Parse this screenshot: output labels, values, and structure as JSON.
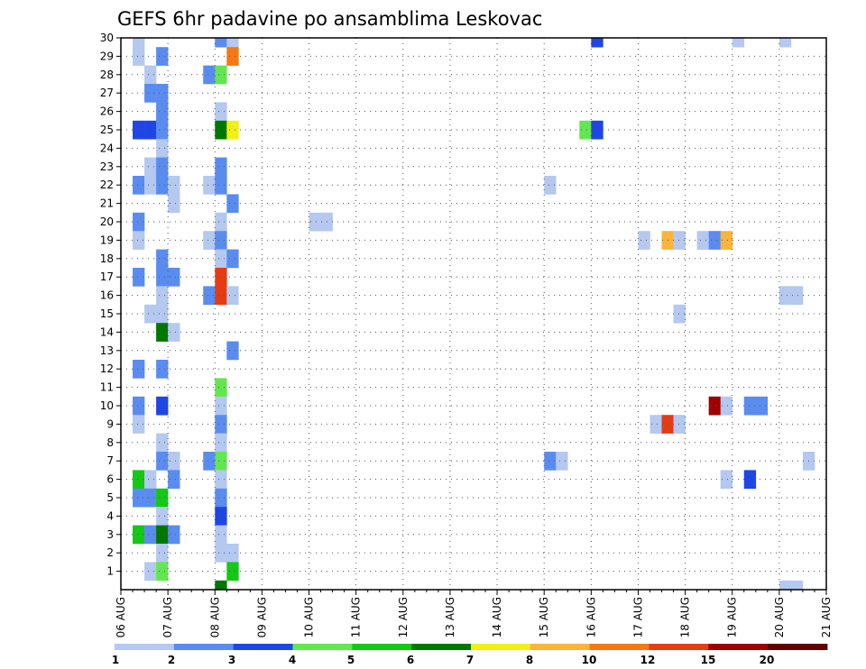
{
  "chart_data": {
    "type": "heatmap",
    "title": "GEFS 6hr padavine po ansamblima Leskovac",
    "xlabel": "",
    "ylabel": "",
    "x_tick_labels": [
      "06 AUG",
      "07 AUG",
      "08 AUG",
      "09 AUG",
      "10 AUG",
      "11 AUG",
      "12 AUG",
      "13 AUG",
      "14 AUG",
      "15 AUG",
      "16 AUG",
      "17 AUG",
      "18 AUG",
      "19 AUG",
      "20 AUG",
      "21 AUG"
    ],
    "x_range_days": [
      0,
      15
    ],
    "y_tick_labels": [
      "1",
      "2",
      "3",
      "4",
      "5",
      "6",
      "7",
      "8",
      "9",
      "10",
      "11",
      "12",
      "13",
      "14",
      "15",
      "16",
      "17",
      "18",
      "19",
      "20",
      "21",
      "22",
      "23",
      "24",
      "25",
      "26",
      "27",
      "28",
      "29",
      "30"
    ],
    "y_range": [
      0,
      30
    ],
    "grid": true,
    "legend_placement": "bottom",
    "legend": {
      "thresholds": [
        "1",
        "2",
        "3",
        "4",
        "5",
        "6",
        "7",
        "8",
        "10",
        "12",
        "15",
        "20"
      ],
      "colors": [
        "#b4c8f0",
        "#5a8cf0",
        "#1e46e6",
        "#64e650",
        "#14c814",
        "#007800",
        "#f0f014",
        "#fab43c",
        "#f57814",
        "#e63c14",
        "#a00000",
        "#640000"
      ]
    },
    "cells_note_units": "cells: [x_day_offset_in_6h_steps, member(y), color_index]",
    "cells": [
      [
        1,
        30,
        0
      ],
      [
        1,
        29,
        0
      ],
      [
        1,
        22,
        1
      ],
      [
        1,
        20,
        1
      ],
      [
        1,
        19,
        0
      ],
      [
        1,
        17,
        1
      ],
      [
        1,
        12,
        1
      ],
      [
        1,
        10,
        1
      ],
      [
        1,
        9,
        0
      ],
      [
        1,
        6,
        4
      ],
      [
        1,
        5,
        1
      ],
      [
        1,
        3,
        4
      ],
      [
        1,
        25,
        2
      ],
      [
        2,
        28,
        0
      ],
      [
        2,
        27,
        1
      ],
      [
        2,
        25,
        2
      ],
      [
        2,
        23,
        0
      ],
      [
        2,
        22,
        0
      ],
      [
        2,
        15,
        0
      ],
      [
        2,
        6,
        0
      ],
      [
        2,
        5,
        1
      ],
      [
        2,
        3,
        1
      ],
      [
        2,
        1,
        0
      ],
      [
        3,
        29,
        1
      ],
      [
        3,
        27,
        1
      ],
      [
        3,
        26,
        1
      ],
      [
        3,
        25,
        1
      ],
      [
        3,
        24,
        0
      ],
      [
        3,
        23,
        1
      ],
      [
        3,
        22,
        1
      ],
      [
        3,
        18,
        1
      ],
      [
        3,
        17,
        1
      ],
      [
        3,
        16,
        0
      ],
      [
        3,
        15,
        0
      ],
      [
        3,
        14,
        5
      ],
      [
        3,
        12,
        1
      ],
      [
        3,
        10,
        2
      ],
      [
        3,
        8,
        0
      ],
      [
        3,
        7,
        1
      ],
      [
        3,
        5,
        4
      ],
      [
        3,
        4,
        0
      ],
      [
        3,
        3,
        5
      ],
      [
        3,
        2,
        0
      ],
      [
        3,
        1,
        3
      ],
      [
        4,
        22,
        0
      ],
      [
        4,
        21,
        0
      ],
      [
        4,
        17,
        1
      ],
      [
        4,
        14,
        0
      ],
      [
        4,
        7,
        0
      ],
      [
        4,
        6,
        1
      ],
      [
        4,
        3,
        1
      ],
      [
        7,
        28,
        1
      ],
      [
        7,
        22,
        0
      ],
      [
        7,
        19,
        0
      ],
      [
        7,
        16,
        1
      ],
      [
        7,
        7,
        1
      ],
      [
        8,
        30,
        1
      ],
      [
        8,
        28,
        3
      ],
      [
        8,
        26,
        0
      ],
      [
        8,
        25,
        5
      ],
      [
        8,
        23,
        1
      ],
      [
        8,
        22,
        1
      ],
      [
        8,
        20,
        0
      ],
      [
        8,
        19,
        1
      ],
      [
        8,
        18,
        0
      ],
      [
        8,
        17,
        9
      ],
      [
        8,
        16,
        9
      ],
      [
        8,
        11,
        3
      ],
      [
        8,
        10,
        0
      ],
      [
        8,
        9,
        1
      ],
      [
        8,
        8,
        0
      ],
      [
        8,
        7,
        3
      ],
      [
        8,
        6,
        0
      ],
      [
        8,
        5,
        1
      ],
      [
        8,
        4,
        2
      ],
      [
        8,
        3,
        0
      ],
      [
        8,
        2,
        0
      ],
      [
        8,
        0,
        5
      ],
      [
        9,
        30,
        0
      ],
      [
        9,
        29,
        8
      ],
      [
        9,
        25,
        6
      ],
      [
        9,
        21,
        1
      ],
      [
        9,
        18,
        1
      ],
      [
        9,
        16,
        0
      ],
      [
        9,
        13,
        1
      ],
      [
        9,
        2,
        0
      ],
      [
        9,
        1,
        4
      ],
      [
        16,
        20,
        0
      ],
      [
        17,
        20,
        0
      ],
      [
        36,
        22,
        0
      ],
      [
        36,
        7,
        1
      ],
      [
        37,
        7,
        0
      ],
      [
        39,
        25,
        3
      ],
      [
        40,
        30,
        2
      ],
      [
        40,
        25,
        2
      ],
      [
        44,
        19,
        0
      ],
      [
        45,
        9,
        0
      ],
      [
        46,
        19,
        7
      ],
      [
        46,
        9,
        9
      ],
      [
        47,
        19,
        0
      ],
      [
        47,
        15,
        0
      ],
      [
        47,
        9,
        0
      ],
      [
        49,
        19,
        0
      ],
      [
        50,
        19,
        1
      ],
      [
        50,
        10,
        10
      ],
      [
        51,
        19,
        7
      ],
      [
        51,
        10,
        0
      ],
      [
        51,
        6,
        0
      ],
      [
        52,
        30,
        0
      ],
      [
        53,
        10,
        1
      ],
      [
        53,
        6,
        2
      ],
      [
        54,
        10,
        1
      ],
      [
        56,
        30,
        0
      ],
      [
        56,
        16,
        0
      ],
      [
        56,
        0,
        0
      ],
      [
        57,
        16,
        0
      ],
      [
        57,
        0,
        0
      ],
      [
        58,
        7,
        0
      ]
    ]
  }
}
